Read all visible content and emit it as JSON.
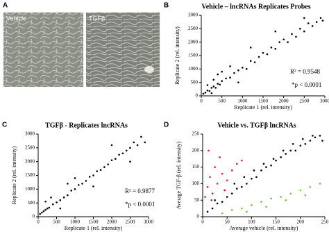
{
  "panel_labels": [
    "A",
    "B",
    "C",
    "D"
  ],
  "images": [
    "Vehicle",
    "TGFβ"
  ],
  "chart_data": [
    {
      "type": "scatter",
      "title": "Vehicle – lncRNAs Replicates Probes",
      "x_label": "Replicate 1 (rel. intensity)",
      "y_label": "Replicate 2 (rel. intensity)",
      "annotations": [
        "R² = 0.9548",
        "*p < 0.0001"
      ],
      "xlim": [
        0,
        3000
      ],
      "ylim": [
        0,
        3000
      ],
      "xticks": [
        0,
        500,
        1000,
        1500,
        2000,
        2500,
        3000
      ],
      "yticks": [
        0,
        500,
        1000,
        1500,
        2000,
        2500,
        3000
      ],
      "series": [
        {
          "color": "#000000",
          "x": [
            50,
            100,
            150,
            200,
            250,
            300,
            350,
            400,
            450,
            500,
            600,
            700,
            800,
            900,
            1000,
            1100,
            1200,
            1300,
            1400,
            1500,
            1600,
            1700,
            1800,
            1900,
            2000,
            2100,
            2200,
            2300,
            2400,
            2500,
            2600,
            2700,
            2800,
            2900,
            300,
            500,
            700,
            150,
            900,
            1200,
            400,
            250,
            1800,
            2500,
            2950
          ],
          "y": [
            80,
            120,
            200,
            180,
            300,
            350,
            300,
            450,
            420,
            550,
            650,
            680,
            850,
            950,
            1050,
            1000,
            1300,
            1250,
            1450,
            1600,
            1550,
            1800,
            1750,
            2000,
            2100,
            2000,
            2300,
            2200,
            2500,
            2400,
            2700,
            2600,
            2750,
            2900,
            600,
            900,
            1100,
            400,
            500,
            1800,
            800,
            100,
            2400,
            2900,
            2800
          ]
        }
      ]
    },
    {
      "type": "scatter",
      "title": "TGFβ - Replicates lncRNAs",
      "x_label": "Replicate 1 (rel. intensity)",
      "y_label": "Replicate 2 (rel. intensity)",
      "annotations": [
        "R² = 0.9877",
        "*p < 0.0001"
      ],
      "xlim": [
        0,
        3000
      ],
      "ylim": [
        0,
        3000
      ],
      "xticks": [
        0,
        500,
        1000,
        1500,
        2000,
        2500,
        3000
      ],
      "yticks": [
        0,
        500,
        1000,
        1500,
        2000,
        2500,
        3000
      ],
      "series": [
        {
          "color": "#000000",
          "x": [
            50,
            100,
            150,
            200,
            250,
            300,
            400,
            500,
            600,
            700,
            800,
            900,
            1000,
            1100,
            1200,
            1300,
            1400,
            1500,
            1600,
            1700,
            1800,
            1900,
            2000,
            2100,
            2200,
            2300,
            2400,
            2500,
            2600,
            2700,
            2800,
            2900,
            350,
            600,
            1000,
            1500,
            2000,
            2500,
            200,
            800
          ],
          "y": [
            100,
            150,
            200,
            250,
            300,
            330,
            450,
            520,
            600,
            700,
            780,
            950,
            1000,
            1150,
            1200,
            1300,
            1450,
            1500,
            1650,
            1700,
            1800,
            1900,
            2050,
            2100,
            2250,
            2300,
            2400,
            2500,
            2700,
            2600,
            2900,
            2700,
            700,
            300,
            1400,
            1100,
            2600,
            2000,
            550,
            1200
          ]
        }
      ]
    },
    {
      "type": "scatter",
      "title": "Vehicle vs. TGFβ  lncRNAs",
      "x_label": "Average vehicle (rel. intensity)",
      "y_label": "Average TGF-β (rel. intensity)",
      "xlim": [
        0,
        250
      ],
      "ylim": [
        0,
        250
      ],
      "xticks": [
        0,
        50,
        100,
        150,
        200,
        250
      ],
      "yticks": [
        0,
        50,
        100,
        150,
        200,
        250
      ],
      "series": [
        {
          "color": "#000000",
          "x": [
            10,
            20,
            30,
            40,
            50,
            60,
            70,
            80,
            90,
            100,
            110,
            120,
            130,
            140,
            150,
            160,
            170,
            180,
            190,
            200,
            210,
            220,
            230,
            240,
            25,
            45,
            65,
            85,
            105,
            125,
            145,
            165,
            185,
            205,
            225,
            245
          ],
          "y": [
            15,
            25,
            40,
            45,
            60,
            70,
            85,
            90,
            100,
            115,
            120,
            140,
            150,
            155,
            170,
            180,
            190,
            200,
            200,
            215,
            220,
            230,
            240,
            245,
            50,
            80,
            100,
            120,
            140,
            160,
            175,
            200,
            220,
            235,
            245,
            230
          ]
        },
        {
          "color": "#d62020",
          "x": [
            5,
            10,
            15,
            20,
            25,
            30,
            40,
            50,
            60,
            70,
            80,
            12,
            18,
            35,
            45
          ],
          "y": [
            60,
            90,
            120,
            70,
            150,
            100,
            130,
            110,
            140,
            160,
            170,
            200,
            50,
            180,
            80
          ]
        },
        {
          "color": "#6cc04a",
          "x": [
            40,
            60,
            80,
            100,
            120,
            140,
            160,
            180,
            200,
            220,
            240,
            90,
            130,
            170,
            210
          ],
          "y": [
            10,
            20,
            25,
            35,
            45,
            55,
            60,
            70,
            80,
            90,
            100,
            15,
            30,
            50,
            65
          ]
        }
      ]
    }
  ]
}
